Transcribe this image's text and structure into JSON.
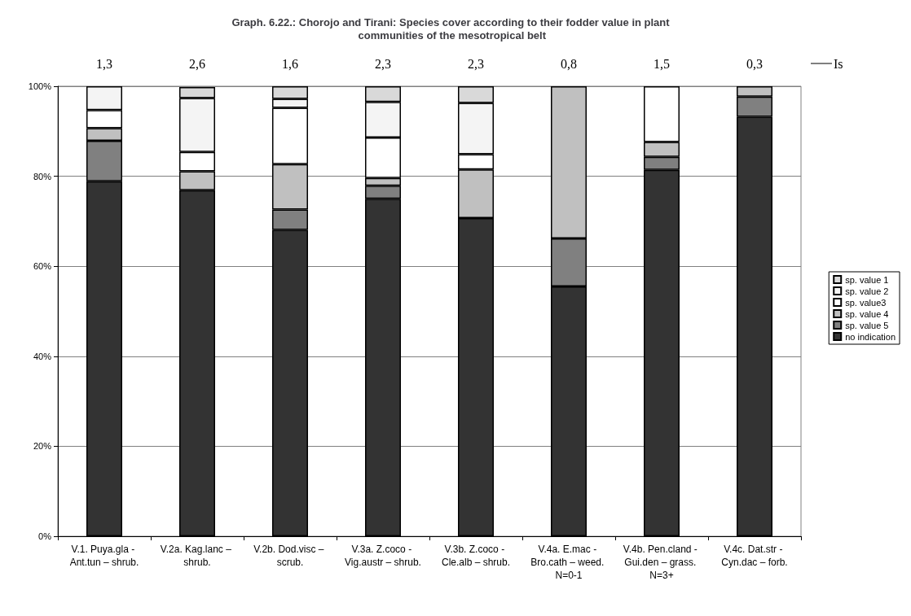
{
  "chart_data": {
    "type": "bar",
    "stacked": true,
    "title": "Graph. 6.22.: Chorojo and Tirani: Species cover according to their fodder value in plant communities of the mesotropical belt",
    "categories": [
      "V.1. Puya.gla - Ant.tun – shrub.",
      "V.2a. Kag.lanc – shrub.",
      "V.2b. Dod.visc – scrub.",
      "V.3a. Z.coco - Vig.austr – shrub.",
      "V.3b. Z.coco - Cle.alb – shrub.",
      "V.4a. E.mac - Bro.cath – weed. N=0-1",
      "V.4b. Pen.cland - Gui.den – grass. N=3+",
      "V.4c. Dat.str - Cyn.dac – forb."
    ],
    "series": [
      {
        "name": "no indication",
        "color": "#333333",
        "values": [
          78.9,
          76.9,
          68.1,
          75.0,
          70.7,
          55.5,
          81.4,
          93.2
        ]
      },
      {
        "name": "sp. value 5",
        "color": "#808080",
        "values": [
          9.0,
          null,
          4.5,
          2.9,
          null,
          10.7,
          2.9,
          4.5
        ]
      },
      {
        "name": "sp. value 4",
        "color": "#c0c0c0",
        "values": [
          2.8,
          4.2,
          10.1,
          1.7,
          10.8,
          33.8,
          3.3,
          2.3
        ]
      },
      {
        "name": "sp. value3",
        "color": "#ffffff",
        "values": [
          4.0,
          4.3,
          12.5,
          9.0,
          3.4,
          null,
          12.4,
          null
        ]
      },
      {
        "name": "sp. value 2",
        "color": "#f4f4f4",
        "values": [
          5.3,
          12.0,
          2.0,
          7.9,
          11.4,
          null,
          null,
          null
        ]
      },
      {
        "name": "sp. value 1",
        "color": "#d9d9d9",
        "values": [
          null,
          2.4,
          2.8,
          3.5,
          3.7,
          null,
          null,
          null
        ]
      }
    ],
    "ylim": [
      0,
      100
    ],
    "yticks": [
      {
        "value": 0,
        "label": "0%"
      },
      {
        "value": 20,
        "label": "20%"
      },
      {
        "value": 40,
        "label": "40%"
      },
      {
        "value": 60,
        "label": "60%"
      },
      {
        "value": 80,
        "label": "80%"
      },
      {
        "value": 100,
        "label": "100%"
      }
    ],
    "grid": "y",
    "legend": "right",
    "annotations": [
      "1,3",
      "2,6",
      "1,6",
      "2,3",
      "2,3",
      "0,8",
      "1,5",
      "0,3",
      "Is"
    ]
  }
}
